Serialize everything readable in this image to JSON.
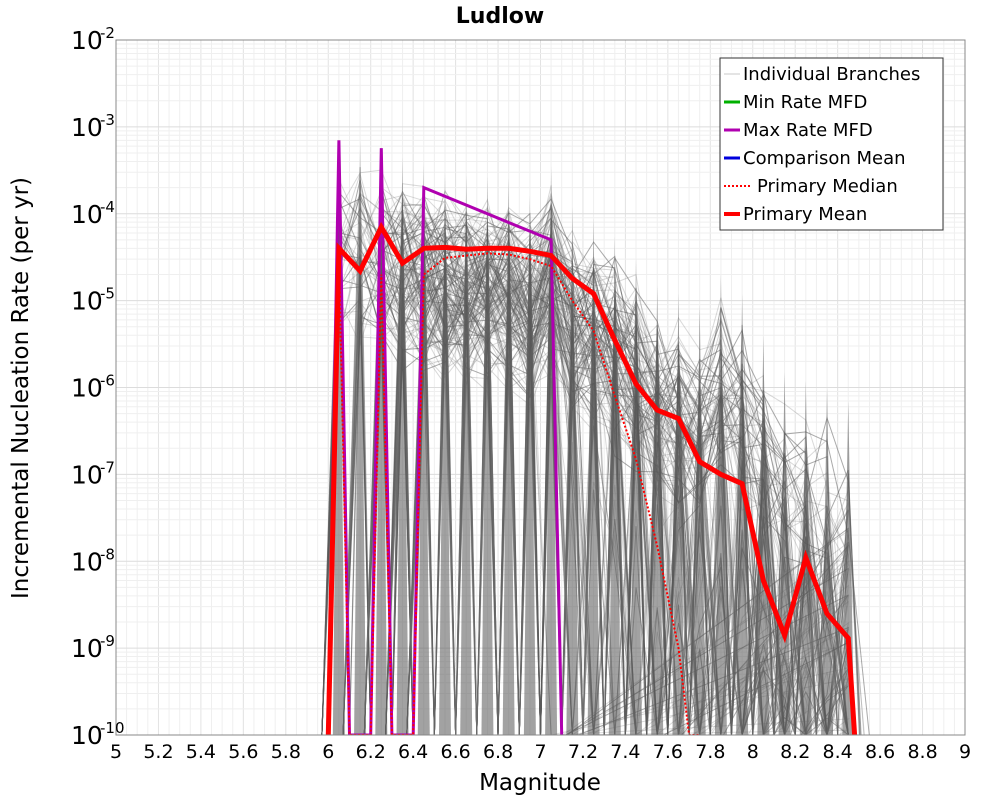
{
  "chart_data": {
    "type": "line",
    "title": "Ludlow",
    "xlabel": "Magnitude",
    "ylabel": "Incremental Nucleation Rate (per yr)",
    "xlim": [
      5,
      9
    ],
    "ylim": [
      1e-10,
      0.01
    ],
    "yscale": "log",
    "grid": true,
    "legend_position": "top-right",
    "x_ticks": [
      "5",
      "5.2",
      "5.4",
      "5.6",
      "5.8",
      "6",
      "6.2",
      "6.4",
      "6.6",
      "6.8",
      "7",
      "7.2",
      "7.4",
      "7.6",
      "7.8",
      "8",
      "8.2",
      "8.4",
      "8.6",
      "8.8",
      "9"
    ],
    "y_tick_exponents": [
      "-10",
      "-9",
      "-8",
      "-7",
      "-6",
      "-5",
      "-4",
      "-3",
      "-2"
    ],
    "legend": [
      {
        "label": "Individual Branches",
        "color": "#c8c8c8",
        "style": "solid"
      },
      {
        "label": "Min Rate MFD",
        "color": "#00b000",
        "style": "solid"
      },
      {
        "label": "Max Rate MFD",
        "color": "#b000b0",
        "style": "solid"
      },
      {
        "label": "Comparison Mean",
        "color": "#0000dd",
        "style": "solid"
      },
      {
        "label": "Primary Median",
        "color": "#ff0000",
        "style": "dotted"
      },
      {
        "label": "Primary Mean",
        "color": "#ff0000",
        "style": "solid"
      }
    ],
    "series": [
      {
        "name": "Primary Mean",
        "color": "#ff0000",
        "x": [
          6.0,
          6.05,
          6.15,
          6.25,
          6.35,
          6.45,
          6.55,
          6.65,
          6.75,
          6.85,
          6.95,
          7.05,
          7.15,
          7.25,
          7.35,
          7.45,
          7.55,
          7.65,
          7.75,
          7.85,
          7.95,
          8.05,
          8.15,
          8.25,
          8.35,
          8.45,
          8.48
        ],
        "y": [
          1e-10,
          4e-05,
          2.2e-05,
          7e-05,
          2.7e-05,
          4e-05,
          4.1e-05,
          3.9e-05,
          4e-05,
          4e-05,
          3.7e-05,
          3.3e-05,
          1.8e-05,
          1.2e-05,
          3.5e-06,
          1.1e-06,
          5.5e-07,
          4.4e-07,
          1.4e-07,
          1e-07,
          7.8e-08,
          6e-09,
          1.4e-09,
          1.1e-08,
          2.5e-09,
          1.3e-09,
          1e-10
        ]
      },
      {
        "name": "Primary Median",
        "color": "#ff0000",
        "x": [
          6.0,
          6.05,
          6.1,
          6.15,
          6.2,
          6.25,
          6.3,
          6.35,
          6.4,
          6.45,
          6.55,
          6.65,
          6.75,
          6.85,
          6.95,
          7.05,
          7.15,
          7.25,
          7.35,
          7.45,
          7.55,
          7.65,
          7.7,
          7.75
        ],
        "y": [
          1e-10,
          3.5e-05,
          1e-10,
          1e-10,
          1e-10,
          2e-05,
          1e-10,
          1e-10,
          1e-10,
          2e-05,
          3.1e-05,
          3.3e-05,
          3.5e-05,
          3.4e-05,
          3e-05,
          2.5e-05,
          1e-05,
          4.5e-06,
          8e-07,
          1.5e-07,
          1.5e-08,
          1e-09,
          1e-10,
          1e-10
        ]
      },
      {
        "name": "Max Rate MFD",
        "color": "#b000b0",
        "x": [
          6.0,
          6.05,
          6.1,
          6.15,
          6.2,
          6.25,
          6.3,
          6.35,
          6.4,
          6.45,
          7.05,
          7.1
        ],
        "y": [
          1e-10,
          0.0007,
          1e-10,
          1e-10,
          1e-10,
          0.00057,
          1e-10,
          1e-10,
          1e-10,
          0.0002,
          5e-05,
          1e-10
        ]
      }
    ],
    "branches_envelope": {
      "description_visible": "Individual Branches",
      "spike_x": [
        6.05,
        6.15,
        6.25,
        6.35,
        6.45,
        6.55,
        6.65,
        6.75,
        6.85,
        6.95,
        7.05,
        7.15,
        7.25,
        7.35,
        7.45,
        7.55,
        7.65,
        7.75,
        7.85,
        7.95,
        8.05,
        8.15,
        8.25,
        8.35,
        8.45
      ],
      "spike_y": [
        0.0007,
        0.0007,
        0.00055,
        0.00045,
        0.00038,
        0.0003,
        0.00028,
        0.00027,
        0.00026,
        0.00016,
        0.00035,
        0.00012,
        9e-05,
        5.5e-05,
        3e-05,
        1.5e-05,
        1.2e-05,
        9e-06,
        2e-05,
        1.2e-05,
        4e-06,
        1.5e-06,
        1.2e-06,
        1e-06,
        7e-07
      ]
    }
  }
}
